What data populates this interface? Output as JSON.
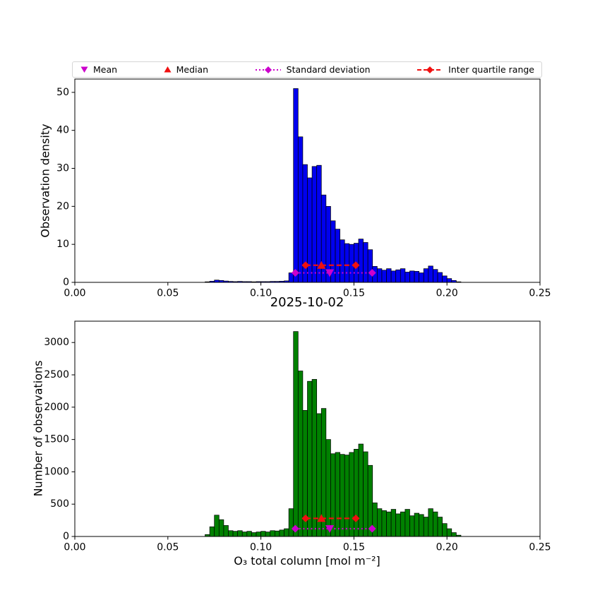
{
  "figure": {
    "title": "2025-10-02",
    "background": "#ffffff"
  },
  "colors": {
    "blue": "#0000ee",
    "green": "#008000",
    "magenta": "#cc00cc",
    "red": "#f01010",
    "axis": "#000000"
  },
  "legend": {
    "items": [
      {
        "label": "Mean",
        "marker": "triangle-down-icon",
        "color": "#cc00cc"
      },
      {
        "label": "Median",
        "marker": "triangle-up-icon",
        "color": "#f01010"
      },
      {
        "label": "Standard deviation",
        "marker": "dotted-line-diamond-icon",
        "color": "#cc00cc"
      },
      {
        "label": "Inter quartile range",
        "marker": "dashed-line-diamond-icon",
        "color": "#f01010"
      }
    ]
  },
  "chart_data": [
    {
      "type": "bar",
      "subtype": "histogram",
      "title": "",
      "xlabel": "",
      "ylabel": "Observation density",
      "bar_color": "#0000ee",
      "edge_color": "#000000",
      "bin_start": 0.07,
      "bin_width": 0.0025,
      "values": [
        0.15,
        0.3,
        0.6,
        0.5,
        0.35,
        0.25,
        0.2,
        0.25,
        0.2,
        0.2,
        0.15,
        0.2,
        0.2,
        0.2,
        0.25,
        0.25,
        0.3,
        0.4,
        2.5,
        51.0,
        38.3,
        31.0,
        27.5,
        30.5,
        30.8,
        23.0,
        20.0,
        16.2,
        14.0,
        11.2,
        10.2,
        10.0,
        10.3,
        11.4,
        10.5,
        8.6,
        4.2,
        3.6,
        3.2,
        3.6,
        3.0,
        3.3,
        3.6,
        2.7,
        3.0,
        2.9,
        2.5,
        3.6,
        4.3,
        3.4,
        2.6,
        1.7,
        1.0,
        0.5,
        0.15
      ],
      "xlim": [
        0.0,
        0.25
      ],
      "ylim": [
        0,
        53.5
      ],
      "xticks": [
        0.0,
        0.05,
        0.1,
        0.15,
        0.2,
        0.25
      ],
      "yticks": [
        0,
        10,
        20,
        30,
        40,
        50
      ],
      "grid": false,
      "overlays": {
        "mean_x": 0.137,
        "median_x": 0.1325,
        "std_span": [
          0.1185,
          0.1598
        ],
        "std_y": 2.5,
        "iqr_span": [
          0.124,
          0.151
        ],
        "iqr_y": 4.5
      }
    },
    {
      "type": "bar",
      "subtype": "histogram",
      "title": "2025-10-02",
      "xlabel": "O₃ total column [mol m⁻²]",
      "ylabel": "Number of observations",
      "bar_color": "#008000",
      "edge_color": "#000000",
      "bin_start": 0.07,
      "bin_width": 0.0025,
      "values": [
        30,
        150,
        330,
        260,
        170,
        90,
        80,
        90,
        70,
        80,
        60,
        70,
        80,
        70,
        90,
        85,
        100,
        120,
        430,
        3170,
        2560,
        1950,
        2400,
        2430,
        1900,
        1980,
        1500,
        1280,
        1300,
        1270,
        1260,
        1300,
        1350,
        1430,
        1310,
        1100,
        520,
        430,
        400,
        380,
        420,
        350,
        380,
        420,
        320,
        360,
        340,
        300,
        430,
        380,
        300,
        200,
        120,
        60,
        20
      ],
      "xlim": [
        0.0,
        0.25
      ],
      "ylim": [
        0,
        3330
      ],
      "xticks": [
        0.0,
        0.05,
        0.1,
        0.15,
        0.2,
        0.25
      ],
      "yticks": [
        0,
        500,
        1000,
        1500,
        2000,
        2500,
        3000
      ],
      "grid": false,
      "overlays": {
        "mean_x": 0.137,
        "median_x": 0.1325,
        "std_span": [
          0.1185,
          0.1598
        ],
        "std_y": 120,
        "iqr_span": [
          0.124,
          0.151
        ],
        "iqr_y": 280
      }
    }
  ]
}
